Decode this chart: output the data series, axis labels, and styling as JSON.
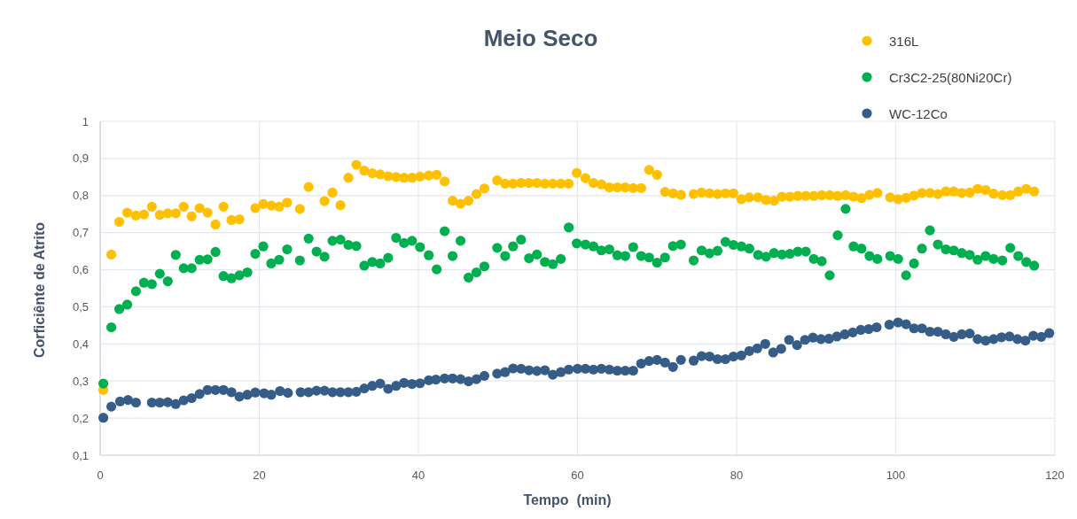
{
  "chart_data": {
    "type": "scatter",
    "title": "Meio Seco",
    "xlabel": "Tempo  (min)",
    "ylabel": "Corficiênte de Atrito",
    "xlim": [
      0,
      120
    ],
    "ylim": [
      0.1,
      1
    ],
    "xticks": [
      0,
      20,
      40,
      60,
      80,
      100,
      120
    ],
    "yticks": [
      {
        "value": 0.1,
        "label": "0,1"
      },
      {
        "value": 0.2,
        "label": "0,2"
      },
      {
        "value": 0.3,
        "label": "0,3"
      },
      {
        "value": 0.4,
        "label": "0,4"
      },
      {
        "value": 0.5,
        "label": "0,5"
      },
      {
        "value": 0.6,
        "label": "0,6"
      },
      {
        "value": 0.7,
        "label": "0,7"
      },
      {
        "value": 0.8,
        "label": "0,8"
      },
      {
        "value": 0.9,
        "label": "0,9"
      },
      1
    ],
    "grid": true,
    "legend": "top right",
    "marker": "circle",
    "series": [
      {
        "name": "316L",
        "color": "#ffc000",
        "x": [
          0.4,
          1.4,
          2.4,
          3.4,
          4.5,
          5.5,
          6.5,
          7.5,
          8.5,
          9.5,
          10.5,
          11.5,
          12.5,
          13.5,
          14.5,
          15.5,
          16.5,
          17.5,
          19.5,
          20.5,
          21.5,
          22.5,
          23.5,
          25.1,
          26.2,
          28.2,
          29.2,
          30.2,
          31.2,
          32.2,
          33.2,
          34.2,
          35.2,
          36.2,
          37.2,
          38.2,
          39.2,
          40.2,
          41.3,
          42.3,
          43.3,
          44.3,
          45.3,
          46.3,
          47.3,
          48.3,
          49.9,
          50.9,
          51.9,
          52.9,
          53.9,
          54.9,
          55.9,
          56.9,
          57.9,
          58.9,
          59.9,
          61.0,
          62.0,
          63.0,
          64.0,
          65.0,
          66.0,
          67.0,
          68.0,
          69.0,
          70.0,
          71.0,
          72.0,
          73.0,
          74.6,
          75.6,
          76.6,
          77.6,
          78.6,
          79.6,
          80.6,
          81.6,
          82.7,
          83.7,
          84.7,
          85.7,
          86.7,
          87.7,
          88.7,
          89.7,
          90.7,
          91.7,
          92.7,
          93.7,
          94.7,
          95.7,
          96.7,
          97.7,
          99.3,
          100.3,
          101.3,
          102.3,
          103.3,
          104.3,
          105.3,
          106.3,
          107.3,
          108.3,
          109.3,
          110.3,
          111.3,
          112.3,
          113.4,
          114.4,
          115.4,
          116.4,
          117.4
        ],
        "values": [
          0.276,
          0.641,
          0.729,
          0.754,
          0.746,
          0.749,
          0.77,
          0.748,
          0.752,
          0.752,
          0.77,
          0.744,
          0.766,
          0.754,
          0.722,
          0.77,
          0.734,
          0.736,
          0.766,
          0.777,
          0.773,
          0.77,
          0.781,
          0.764,
          0.823,
          0.785,
          0.808,
          0.774,
          0.848,
          0.883,
          0.867,
          0.86,
          0.857,
          0.852,
          0.85,
          0.848,
          0.848,
          0.851,
          0.854,
          0.856,
          0.838,
          0.786,
          0.778,
          0.786,
          0.804,
          0.819,
          0.841,
          0.832,
          0.832,
          0.834,
          0.834,
          0.834,
          0.832,
          0.832,
          0.832,
          0.832,
          0.861,
          0.847,
          0.834,
          0.83,
          0.822,
          0.822,
          0.822,
          0.82,
          0.82,
          0.869,
          0.856,
          0.81,
          0.806,
          0.802,
          0.804,
          0.808,
          0.806,
          0.804,
          0.806,
          0.806,
          0.79,
          0.795,
          0.795,
          0.788,
          0.786,
          0.797,
          0.797,
          0.799,
          0.799,
          0.799,
          0.801,
          0.801,
          0.799,
          0.801,
          0.797,
          0.793,
          0.802,
          0.807,
          0.795,
          0.79,
          0.794,
          0.8,
          0.807,
          0.807,
          0.804,
          0.811,
          0.811,
          0.807,
          0.808,
          0.818,
          0.815,
          0.805,
          0.801,
          0.801,
          0.811,
          0.818,
          0.811
        ]
      },
      {
        "name": "Cr3C2-25(80Ni20Cr)",
        "color": "#00b050",
        "x": [
          0.4,
          1.4,
          2.4,
          3.4,
          4.5,
          5.5,
          6.5,
          7.5,
          8.5,
          9.5,
          10.5,
          11.5,
          12.5,
          13.5,
          14.5,
          15.5,
          16.5,
          17.5,
          18.5,
          19.5,
          20.5,
          21.5,
          22.5,
          23.5,
          25.1,
          26.2,
          27.2,
          28.2,
          29.2,
          30.2,
          31.2,
          32.2,
          33.2,
          34.2,
          35.2,
          36.2,
          37.2,
          38.2,
          39.2,
          40.2,
          41.3,
          42.3,
          43.3,
          44.3,
          45.3,
          46.3,
          47.3,
          48.3,
          49.9,
          50.9,
          51.9,
          52.9,
          53.9,
          54.9,
          55.9,
          56.9,
          57.9,
          58.9,
          59.9,
          61.0,
          62.0,
          63.0,
          64.0,
          65.0,
          66.0,
          67.0,
          68.0,
          69.0,
          70.0,
          71.0,
          72.0,
          73.0,
          74.6,
          75.6,
          76.6,
          77.6,
          78.6,
          79.6,
          80.6,
          81.6,
          82.7,
          83.7,
          84.7,
          85.7,
          86.7,
          87.7,
          88.7,
          89.7,
          90.7,
          91.7,
          92.7,
          93.7,
          94.7,
          95.7,
          96.7,
          97.7,
          99.3,
          100.3,
          101.3,
          102.3,
          103.3,
          104.3,
          105.3,
          106.3,
          107.3,
          108.3,
          109.3,
          110.3,
          111.3,
          112.3,
          113.4,
          114.4,
          115.4,
          116.4,
          117.4
        ],
        "values": [
          0.293,
          0.445,
          0.494,
          0.506,
          0.542,
          0.565,
          0.561,
          0.589,
          0.569,
          0.64,
          0.604,
          0.604,
          0.627,
          0.628,
          0.648,
          0.583,
          0.577,
          0.585,
          0.593,
          0.643,
          0.663,
          0.617,
          0.627,
          0.655,
          0.625,
          0.684,
          0.649,
          0.635,
          0.678,
          0.681,
          0.667,
          0.664,
          0.611,
          0.621,
          0.617,
          0.632,
          0.686,
          0.672,
          0.678,
          0.661,
          0.639,
          0.601,
          0.704,
          0.637,
          0.678,
          0.579,
          0.593,
          0.609,
          0.659,
          0.637,
          0.663,
          0.681,
          0.631,
          0.641,
          0.621,
          0.615,
          0.629,
          0.714,
          0.671,
          0.668,
          0.663,
          0.652,
          0.655,
          0.639,
          0.637,
          0.661,
          0.637,
          0.633,
          0.619,
          0.633,
          0.664,
          0.668,
          0.625,
          0.652,
          0.644,
          0.651,
          0.675,
          0.667,
          0.663,
          0.657,
          0.64,
          0.635,
          0.645,
          0.641,
          0.643,
          0.649,
          0.649,
          0.629,
          0.623,
          0.585,
          0.693,
          0.764,
          0.663,
          0.657,
          0.637,
          0.629,
          0.637,
          0.629,
          0.585,
          0.617,
          0.657,
          0.706,
          0.668,
          0.655,
          0.652,
          0.645,
          0.64,
          0.627,
          0.637,
          0.629,
          0.625,
          0.659,
          0.637,
          0.621,
          0.611
        ]
      },
      {
        "name": "WC-12Co",
        "color": "#355d87",
        "x": [
          0.4,
          1.4,
          2.5,
          3.5,
          4.5,
          6.5,
          7.5,
          8.5,
          9.5,
          10.5,
          11.5,
          12.5,
          13.5,
          14.5,
          15.5,
          16.5,
          17.5,
          18.5,
          19.5,
          20.6,
          21.5,
          22.6,
          23.6,
          25.2,
          26.2,
          27.2,
          28.2,
          29.2,
          30.2,
          31.2,
          32.2,
          33.2,
          34.2,
          35.2,
          36.2,
          37.2,
          38.2,
          39.2,
          40.2,
          41.3,
          42.2,
          43.3,
          44.3,
          45.3,
          46.3,
          47.3,
          48.3,
          49.9,
          50.9,
          51.9,
          52.9,
          53.9,
          54.9,
          55.9,
          56.9,
          57.9,
          58.9,
          60.0,
          61.0,
          62.0,
          63.0,
          64.0,
          65.0,
          66.0,
          67.0,
          68.0,
          69.0,
          70.0,
          71.0,
          72.0,
          73.0,
          74.6,
          75.6,
          76.6,
          77.6,
          78.6,
          79.6,
          80.6,
          81.6,
          82.6,
          83.6,
          84.6,
          85.6,
          86.6,
          87.6,
          88.6,
          89.6,
          90.6,
          91.6,
          92.6,
          93.6,
          94.6,
          95.6,
          96.6,
          97.6,
          99.2,
          100.3,
          101.3,
          102.3,
          103.3,
          104.3,
          105.3,
          106.3,
          107.3,
          108.3,
          109.3,
          110.3,
          111.3,
          112.3,
          113.3,
          114.3,
          115.3,
          116.3,
          117.3,
          118.3,
          119.3
        ],
        "values": [
          0.201,
          0.231,
          0.245,
          0.249,
          0.242,
          0.242,
          0.242,
          0.243,
          0.238,
          0.248,
          0.254,
          0.265,
          0.276,
          0.276,
          0.276,
          0.27,
          0.258,
          0.263,
          0.269,
          0.267,
          0.263,
          0.273,
          0.268,
          0.27,
          0.27,
          0.274,
          0.274,
          0.27,
          0.27,
          0.27,
          0.271,
          0.28,
          0.287,
          0.293,
          0.279,
          0.287,
          0.295,
          0.292,
          0.294,
          0.302,
          0.304,
          0.307,
          0.307,
          0.305,
          0.299,
          0.305,
          0.314,
          0.32,
          0.324,
          0.334,
          0.333,
          0.329,
          0.327,
          0.329,
          0.317,
          0.324,
          0.331,
          0.333,
          0.333,
          0.331,
          0.333,
          0.331,
          0.328,
          0.328,
          0.328,
          0.347,
          0.354,
          0.357,
          0.35,
          0.338,
          0.357,
          0.355,
          0.367,
          0.366,
          0.359,
          0.359,
          0.366,
          0.369,
          0.381,
          0.388,
          0.4,
          0.377,
          0.387,
          0.411,
          0.397,
          0.411,
          0.417,
          0.413,
          0.414,
          0.42,
          0.426,
          0.431,
          0.438,
          0.44,
          0.445,
          0.452,
          0.458,
          0.453,
          0.442,
          0.442,
          0.433,
          0.433,
          0.426,
          0.419,
          0.426,
          0.428,
          0.413,
          0.409,
          0.413,
          0.418,
          0.42,
          0.413,
          0.409,
          0.422,
          0.419,
          0.429
        ]
      }
    ]
  }
}
